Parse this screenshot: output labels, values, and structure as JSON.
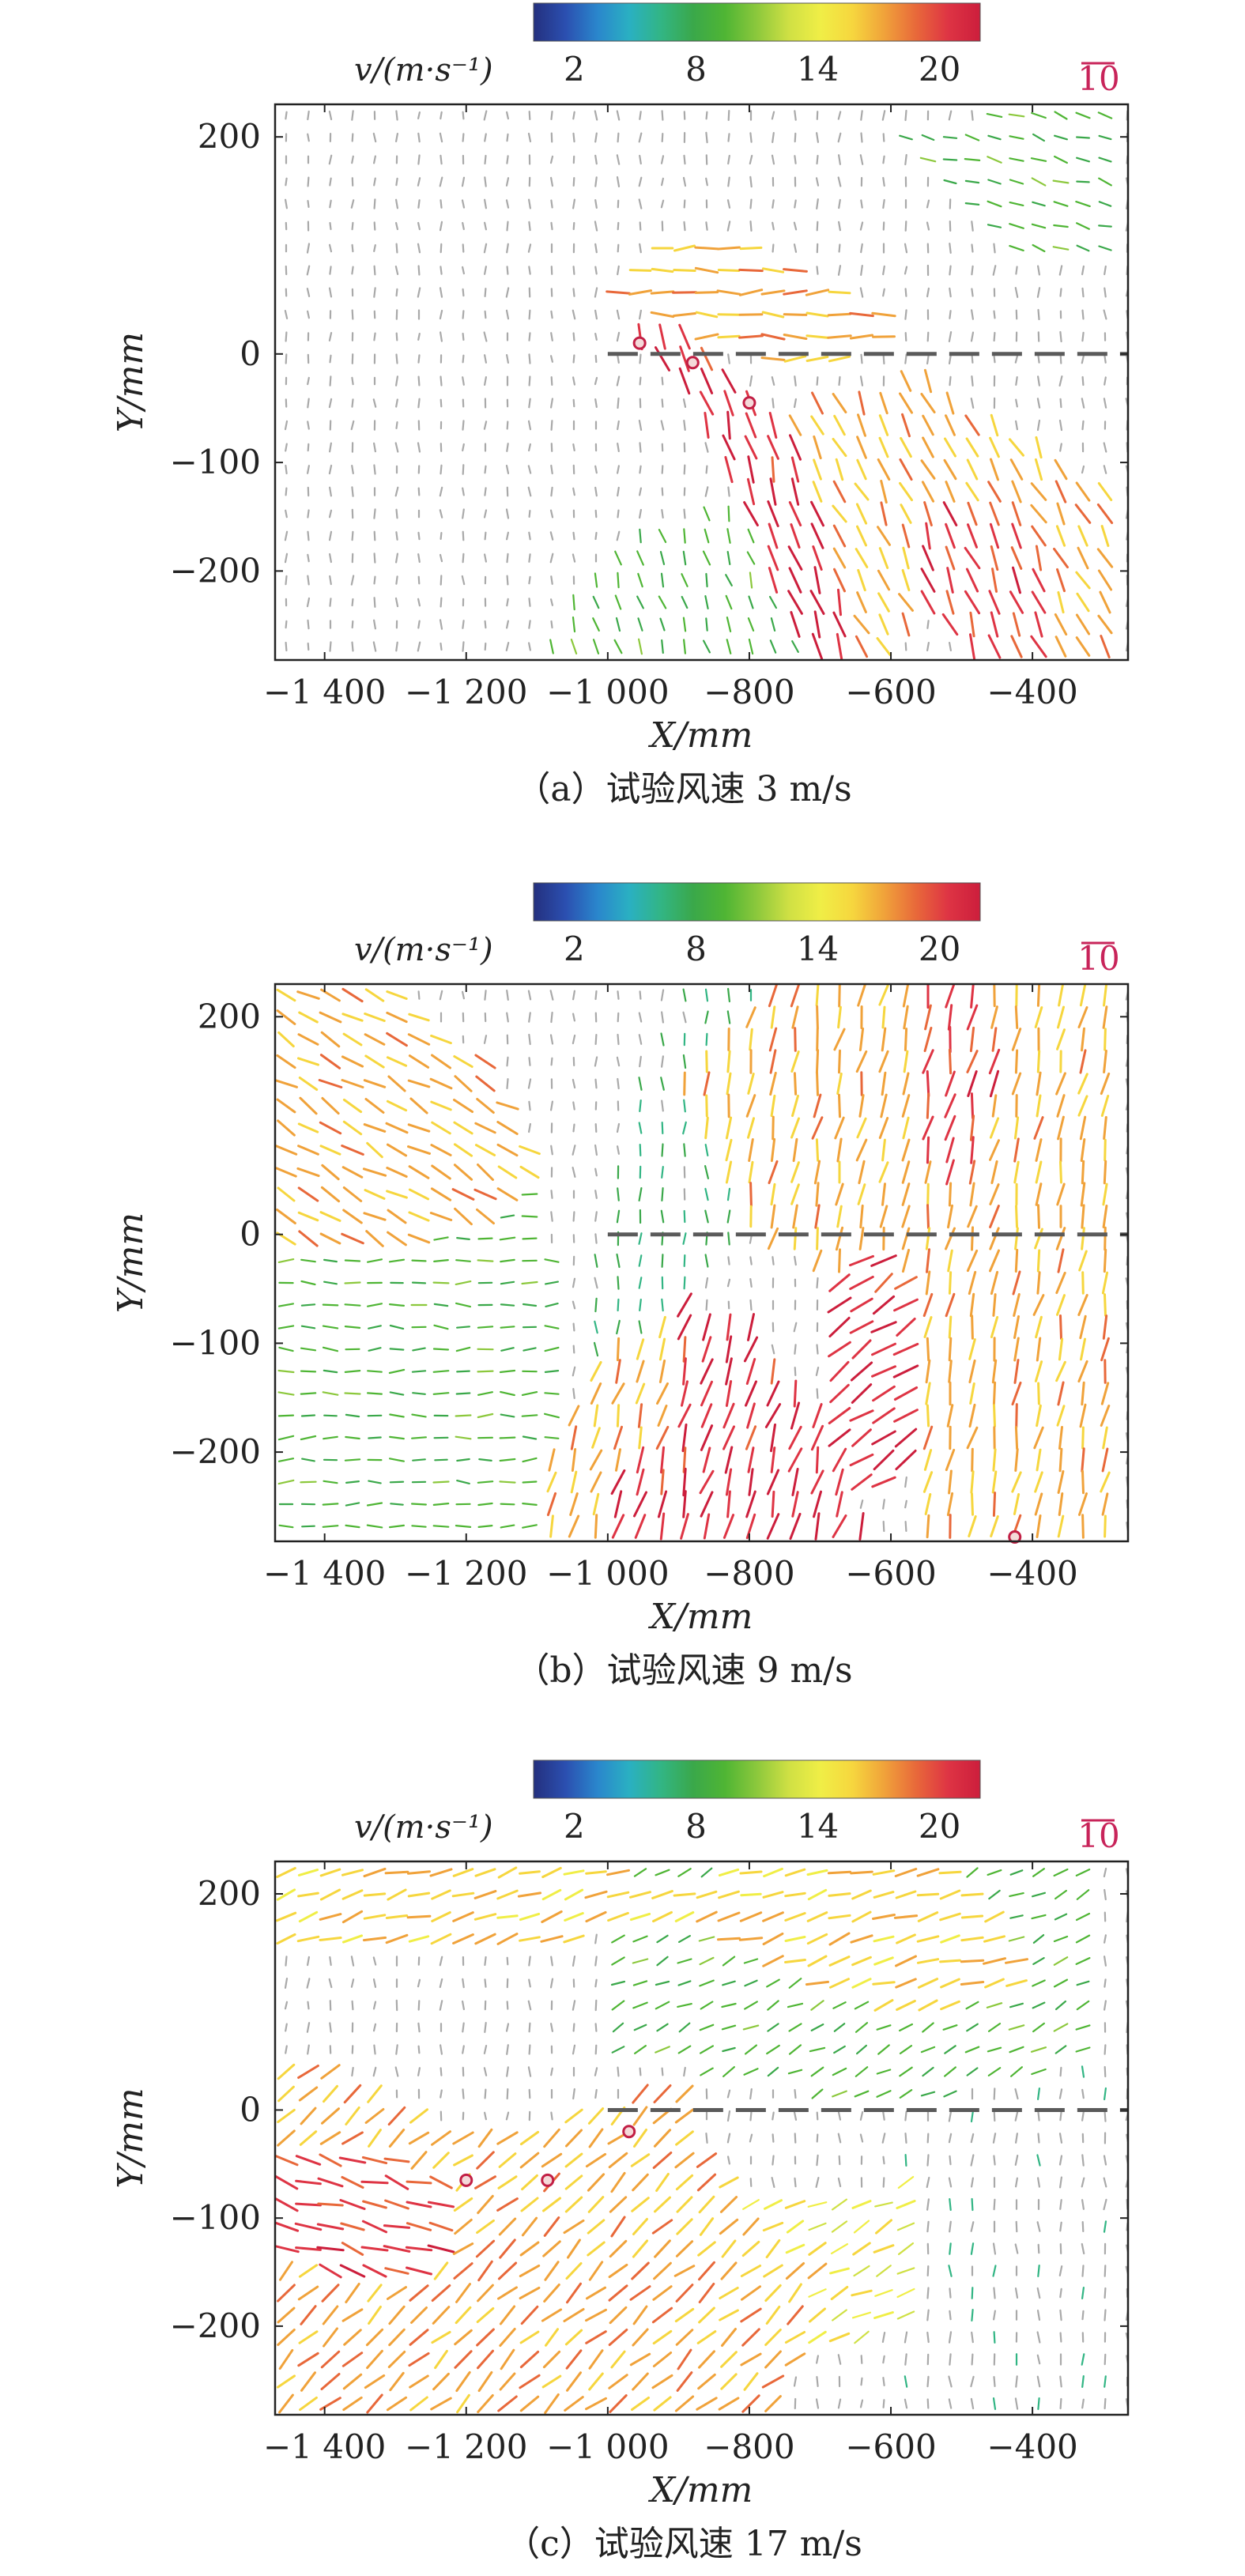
{
  "figure": {
    "colorbar": {
      "label": "v/(m·s⁻¹)",
      "range": [
        0,
        22
      ],
      "ticks": [
        2,
        8,
        14,
        20
      ],
      "colors": [
        "#24307e",
        "#2b4fb0",
        "#2a86cc",
        "#2ab0c2",
        "#32b584",
        "#3aa84a",
        "#4fb534",
        "#8cc83c",
        "#cfe044",
        "#f0ee46",
        "#f6d63e",
        "#f0a23a",
        "#e8683a",
        "#de3444",
        "#cc1e3c"
      ]
    },
    "axes": {
      "xlabel": "X/mm",
      "ylabel": "Y/mm",
      "xlim": [
        -1470,
        -265
      ],
      "ylim": [
        -282,
        230
      ],
      "xticks": [
        -1400,
        -1200,
        -1000,
        -800,
        -600,
        -400
      ],
      "xtick_labels": [
        "−1 400",
        "−1 200",
        "−1 000",
        "−800",
        "−600",
        "−400"
      ],
      "yticks": [
        200,
        0,
        -100,
        -200
      ],
      "ytick_labels": [
        "200",
        "0",
        "−100",
        "−200"
      ]
    },
    "reference_vector": {
      "label": "10",
      "value": 10
    }
  },
  "chart_data": [
    {
      "type": "vector-field",
      "caption": "（a）试验风速 3 m/s",
      "wind_speed": 3,
      "dashed_line": {
        "x": [
          -1000,
          -265
        ],
        "y": 0
      },
      "markers": [
        {
          "x": -955,
          "y": 10
        },
        {
          "x": -880,
          "y": -8
        },
        {
          "x": -800,
          "y": -45
        }
      ],
      "regions": [
        {
          "polygon": [
            [
              -1000,
              -160
            ],
            [
              -1000,
              -175
            ],
            [
              -1100,
              -280
            ],
            [
              -1470,
              -280
            ],
            [
              -1470,
              230
            ],
            [
              -1100,
              230
            ],
            [
              -1000,
              230
            ],
            [
              -1000,
              60
            ]
          ],
          "speed": 3,
          "dir": [
            0,
            1
          ]
        },
        {
          "polygon": [
            [
              -1000,
              60
            ],
            [
              -900,
              110
            ],
            [
              -800,
              110
            ],
            [
              -700,
              70
            ],
            [
              -600,
              40
            ],
            [
              -600,
              0
            ],
            [
              -750,
              -10
            ],
            [
              -850,
              5
            ]
          ],
          "speed": 17,
          "dir": [
            1,
            0
          ]
        },
        {
          "polygon": [
            [
              -965,
              20
            ],
            [
              -900,
              40
            ],
            [
              -850,
              10
            ],
            [
              -750,
              -60
            ],
            [
              -650,
              -230
            ],
            [
              -650,
              -280
            ],
            [
              -720,
              -280
            ],
            [
              -870,
              -60
            ],
            [
              -940,
              -10
            ]
          ],
          "speed": 21,
          "dir": [
            0.3,
            -1
          ]
        },
        {
          "polygon": [
            [
              -560,
              -130
            ],
            [
              -420,
              -130
            ],
            [
              -360,
              -210
            ],
            [
              -360,
              -280
            ],
            [
              -470,
              -280
            ],
            [
              -560,
              -230
            ]
          ],
          "speed": 20,
          "dir": [
            0.4,
            -1
          ]
        },
        {
          "polygon": [
            [
              -700,
              -40
            ],
            [
              -560,
              -20
            ],
            [
              -400,
              -80
            ],
            [
              -270,
              -130
            ],
            [
              -270,
              -280
            ],
            [
              -360,
              -280
            ],
            [
              -360,
              -210
            ],
            [
              -420,
              -130
            ],
            [
              -560,
              -130
            ],
            [
              -560,
              -230
            ],
            [
              -600,
              -280
            ],
            [
              -650,
              -280
            ],
            [
              -650,
              -230
            ],
            [
              -750,
              -60
            ]
          ],
          "speed": 17,
          "dir": [
            0.5,
            -1
          ]
        },
        {
          "polygon": [
            [
              -600,
              200
            ],
            [
              -400,
              230
            ],
            [
              -270,
              230
            ],
            [
              -270,
              100
            ],
            [
              -400,
              80
            ]
          ],
          "speed": 9,
          "dir": [
            1,
            -0.3
          ]
        },
        {
          "polygon": [
            [
              -1100,
              -280
            ],
            [
              -1000,
              -175
            ],
            [
              -800,
              -130
            ],
            [
              -700,
              -280
            ]
          ],
          "speed": 9,
          "dir": [
            0.3,
            -1
          ]
        }
      ]
    },
    {
      "type": "vector-field",
      "caption": "（b）试验风速 9 m/s",
      "wind_speed": 9,
      "dashed_line": {
        "x": [
          -1000,
          -265
        ],
        "y": 0
      },
      "markers": [
        {
          "x": -425,
          "y": -278
        }
      ],
      "regions": [
        {
          "polygon": [
            [
              -1470,
              230
            ],
            [
              -1300,
              230
            ],
            [
              -1150,
              150
            ],
            [
              -1100,
              60
            ],
            [
              -1200,
              0
            ],
            [
              -1350,
              -10
            ],
            [
              -1470,
              -20
            ]
          ],
          "speed": 17,
          "dir": [
            1,
            -0.6
          ]
        },
        {
          "polygon": [
            [
              -1470,
              -20
            ],
            [
              -1350,
              -10
            ],
            [
              -1200,
              0
            ],
            [
              -1100,
              60
            ],
            [
              -1050,
              -100
            ],
            [
              -1100,
              -280
            ],
            [
              -1470,
              -280
            ]
          ],
          "speed": 9,
          "dir": [
            1,
            0
          ]
        },
        {
          "polygon": [
            [
              -900,
              -60
            ],
            [
              -820,
              -70
            ],
            [
              -700,
              -150
            ],
            [
              -650,
              -250
            ],
            [
              -620,
              -280
            ],
            [
              -1000,
              -280
            ],
            [
              -1000,
              -230
            ],
            [
              -900,
              -150
            ]
          ],
          "speed": 21,
          "dir": [
            0.3,
            1
          ]
        },
        {
          "polygon": [
            [
              -1000,
              -110
            ],
            [
              -900,
              -60
            ],
            [
              -900,
              -150
            ],
            [
              -1000,
              -230
            ],
            [
              -1000,
              -280
            ],
            [
              -1120,
              -280
            ],
            [
              -1080,
              -180
            ]
          ],
          "speed": 17,
          "dir": [
            0.3,
            1
          ]
        },
        {
          "polygon": [
            [
              -700,
              -30
            ],
            [
              -600,
              -10
            ],
            [
              -550,
              -50
            ],
            [
              -560,
              -200
            ],
            [
              -650,
              -250
            ],
            [
              -700,
              -150
            ]
          ],
          "speed": 21,
          "dir": [
            1,
            0.7
          ]
        },
        {
          "polygon": [
            [
              -560,
              220
            ],
            [
              -480,
              220
            ],
            [
              -440,
              150
            ],
            [
              -500,
              30
            ],
            [
              -560,
              70
            ]
          ],
          "speed": 20,
          "dir": [
            0.2,
            1
          ]
        },
        {
          "polygon": [
            [
              -750,
              230
            ],
            [
              -560,
              230
            ],
            [
              -560,
              70
            ],
            [
              -500,
              30
            ],
            [
              -440,
              150
            ],
            [
              -480,
              220
            ],
            [
              -270,
              230
            ],
            [
              -270,
              -280
            ],
            [
              -550,
              -280
            ],
            [
              -560,
              -200
            ],
            [
              -550,
              -50
            ],
            [
              -600,
              -10
            ],
            [
              -700,
              -30
            ],
            [
              -800,
              0
            ],
            [
              -850,
              80
            ],
            [
              -900,
              150
            ]
          ],
          "speed": 17,
          "dir": [
            0.2,
            1
          ]
        },
        {
          "polygon": [
            [
              -950,
              230
            ],
            [
              -750,
              230
            ],
            [
              -900,
              150
            ],
            [
              -850,
              80
            ],
            [
              -800,
              0
            ],
            [
              -900,
              -60
            ],
            [
              -1000,
              -110
            ],
            [
              -1050,
              -100
            ],
            [
              -1000,
              30
            ],
            [
              -950,
              150
            ]
          ],
          "speed": 7,
          "dir": [
            0,
            1
          ]
        }
      ]
    },
    {
      "type": "vector-field",
      "caption": "（c）试验风速 17 m/s",
      "wind_speed": 17,
      "dashed_line": {
        "x": [
          -1000,
          -265
        ],
        "y": 0
      },
      "markers": [
        {
          "x": -1200,
          "y": -65
        },
        {
          "x": -1085,
          "y": -65
        },
        {
          "x": -970,
          "y": -20
        }
      ],
      "regions": [
        {
          "polygon": [
            [
              -1470,
              -30
            ],
            [
              -1300,
              -40
            ],
            [
              -1200,
              -80
            ],
            [
              -1250,
              -160
            ],
            [
              -1350,
              -160
            ],
            [
              -1470,
              -130
            ]
          ],
          "speed": 20,
          "dir": [
            1,
            -0.3
          ]
        },
        {
          "polygon": [
            [
              -1470,
              60
            ],
            [
              -1200,
              -20
            ],
            [
              -1000,
              0
            ],
            [
              -900,
              40
            ],
            [
              -850,
              -60
            ],
            [
              -700,
              -150
            ],
            [
              -750,
              -280
            ],
            [
              -1470,
              -280
            ]
          ],
          "speed": 17,
          "dir": [
            1,
            0.9
          ]
        },
        {
          "polygon": [
            [
              -1470,
              230
            ],
            [
              -1000,
              230
            ],
            [
              -900,
              200
            ],
            [
              -800,
              230
            ],
            [
              -500,
              230
            ],
            [
              -400,
              120
            ],
            [
              -560,
              80
            ],
            [
              -700,
              110
            ],
            [
              -850,
              160
            ],
            [
              -1000,
              160
            ],
            [
              -1200,
              140
            ],
            [
              -1470,
              150
            ]
          ],
          "speed": 16,
          "dir": [
            1,
            0.3
          ]
        },
        {
          "polygon": [
            [
              -960,
              30
            ],
            [
              -920,
              30
            ],
            [
              -880,
              -60
            ],
            [
              -920,
              -100
            ],
            [
              -980,
              -20
            ]
          ],
          "speed": 17,
          "dir": [
            0.3,
            1
          ]
        },
        {
          "polygon": [
            [
              -850,
              -60
            ],
            [
              -700,
              -80
            ],
            [
              -560,
              -60
            ],
            [
              -550,
              -200
            ],
            [
              -700,
              -220
            ]
          ],
          "speed": 14,
          "dir": [
            1,
            0.5
          ]
        },
        {
          "polygon": [
            [
              -1000,
              230
            ],
            [
              -300,
              230
            ],
            [
              -300,
              50
            ],
            [
              -600,
              0
            ],
            [
              -1000,
              50
            ]
          ],
          "speed": 9,
          "dir": [
            1,
            0.5
          ]
        },
        {
          "polygon": [
            [
              -600,
              0
            ],
            [
              -300,
              50
            ],
            [
              -270,
              230
            ],
            [
              -270,
              -280
            ],
            [
              -600,
              -280
            ],
            [
              -600,
              -100
            ]
          ],
          "speed": 5,
          "dir": [
            0,
            1
          ]
        }
      ]
    }
  ]
}
